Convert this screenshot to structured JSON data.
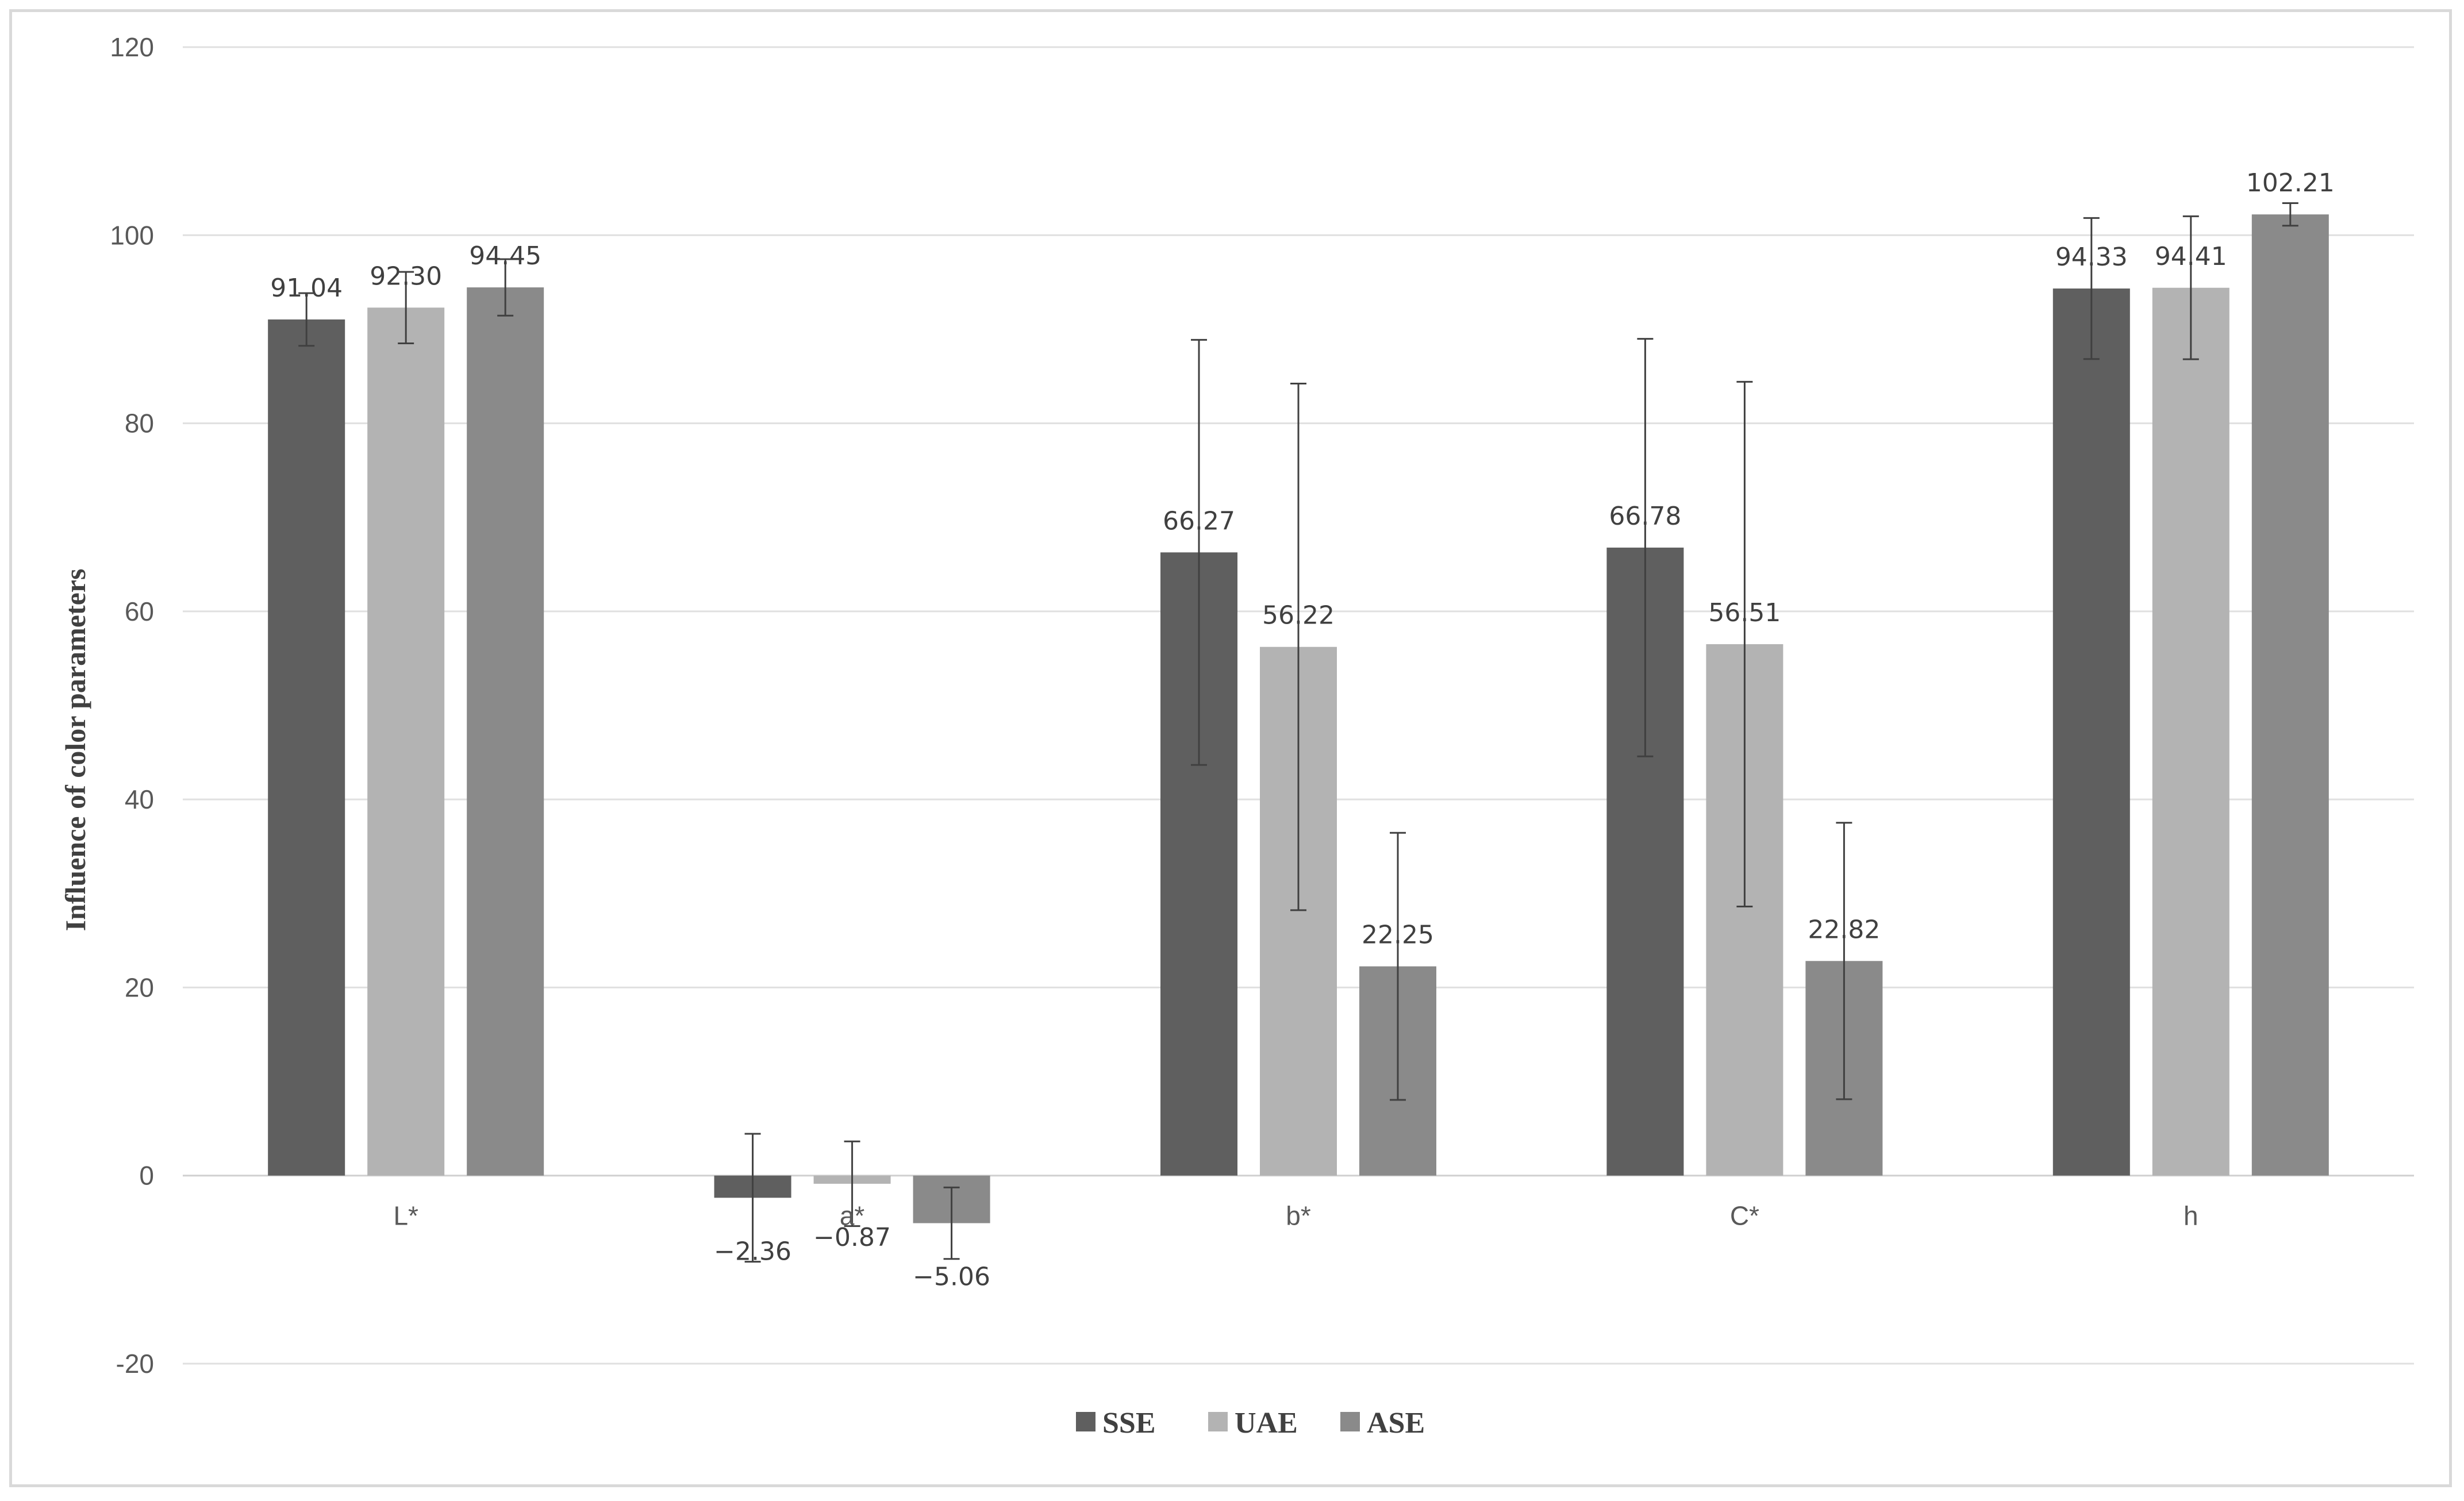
{
  "chart_data": {
    "type": "bar",
    "title": "",
    "xlabel": "",
    "ylabel": "Influence of color parameters",
    "ylim": [
      -20,
      120
    ],
    "yticks": [
      -20,
      0,
      20,
      40,
      60,
      80,
      100,
      120
    ],
    "grid": true,
    "legend_position": "bottom",
    "categories": [
      "L*",
      "a*",
      "b*",
      "C*",
      "h"
    ],
    "series": [
      {
        "name": "SSE",
        "color": "#5f5f5f",
        "values": [
          91.04,
          -2.36,
          66.27,
          66.78,
          94.33
        ],
        "labels": [
          "91.04",
          "−2.36",
          "66.27",
          "66.78",
          "94.33"
        ],
        "error": [
          2.8,
          6.8,
          22.6,
          22.2,
          7.5
        ]
      },
      {
        "name": "UAE",
        "color": "#b3b3b3",
        "values": [
          92.3,
          -0.87,
          56.22,
          56.51,
          94.41
        ],
        "labels": [
          "92.30",
          "−0.87",
          "56.22",
          "56.51",
          "94.41"
        ],
        "error": [
          3.8,
          4.5,
          28.0,
          27.9,
          7.6
        ]
      },
      {
        "name": "ASE",
        "color": "#8a8a8a",
        "values": [
          94.45,
          -5.06,
          22.25,
          22.82,
          102.21
        ],
        "labels": [
          "94.45",
          "−5.06",
          "22.25",
          "22.82",
          "102.21"
        ],
        "error": [
          3.0,
          3.8,
          14.2,
          14.7,
          1.2
        ]
      }
    ]
  }
}
